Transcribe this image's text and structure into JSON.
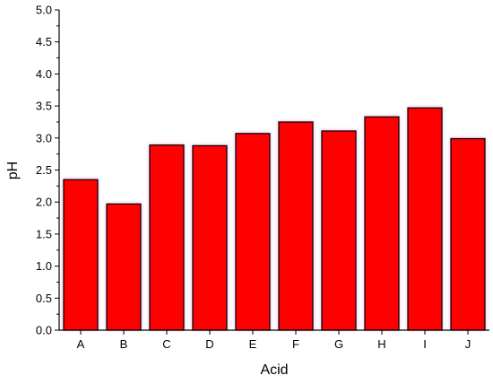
{
  "chart_data": {
    "type": "bar",
    "title": "",
    "xlabel": "Acid",
    "ylabel": "pH",
    "categories": [
      "A",
      "B",
      "C",
      "D",
      "E",
      "F",
      "G",
      "H",
      "I",
      "J"
    ],
    "values": [
      2.35,
      1.97,
      2.89,
      2.88,
      3.07,
      3.25,
      3.11,
      3.33,
      3.47,
      2.99
    ],
    "ylim": [
      0,
      5.0
    ],
    "yticks": [
      "0.0",
      "0.5",
      "1.0",
      "1.5",
      "2.0",
      "2.5",
      "3.0",
      "3.5",
      "4.0",
      "4.5",
      "5.0"
    ],
    "grid": false,
    "legend": "none",
    "bar_color": "#ff0000",
    "bar_edge_color": "#000000",
    "bar_glow_color": "#e8b4e8"
  }
}
